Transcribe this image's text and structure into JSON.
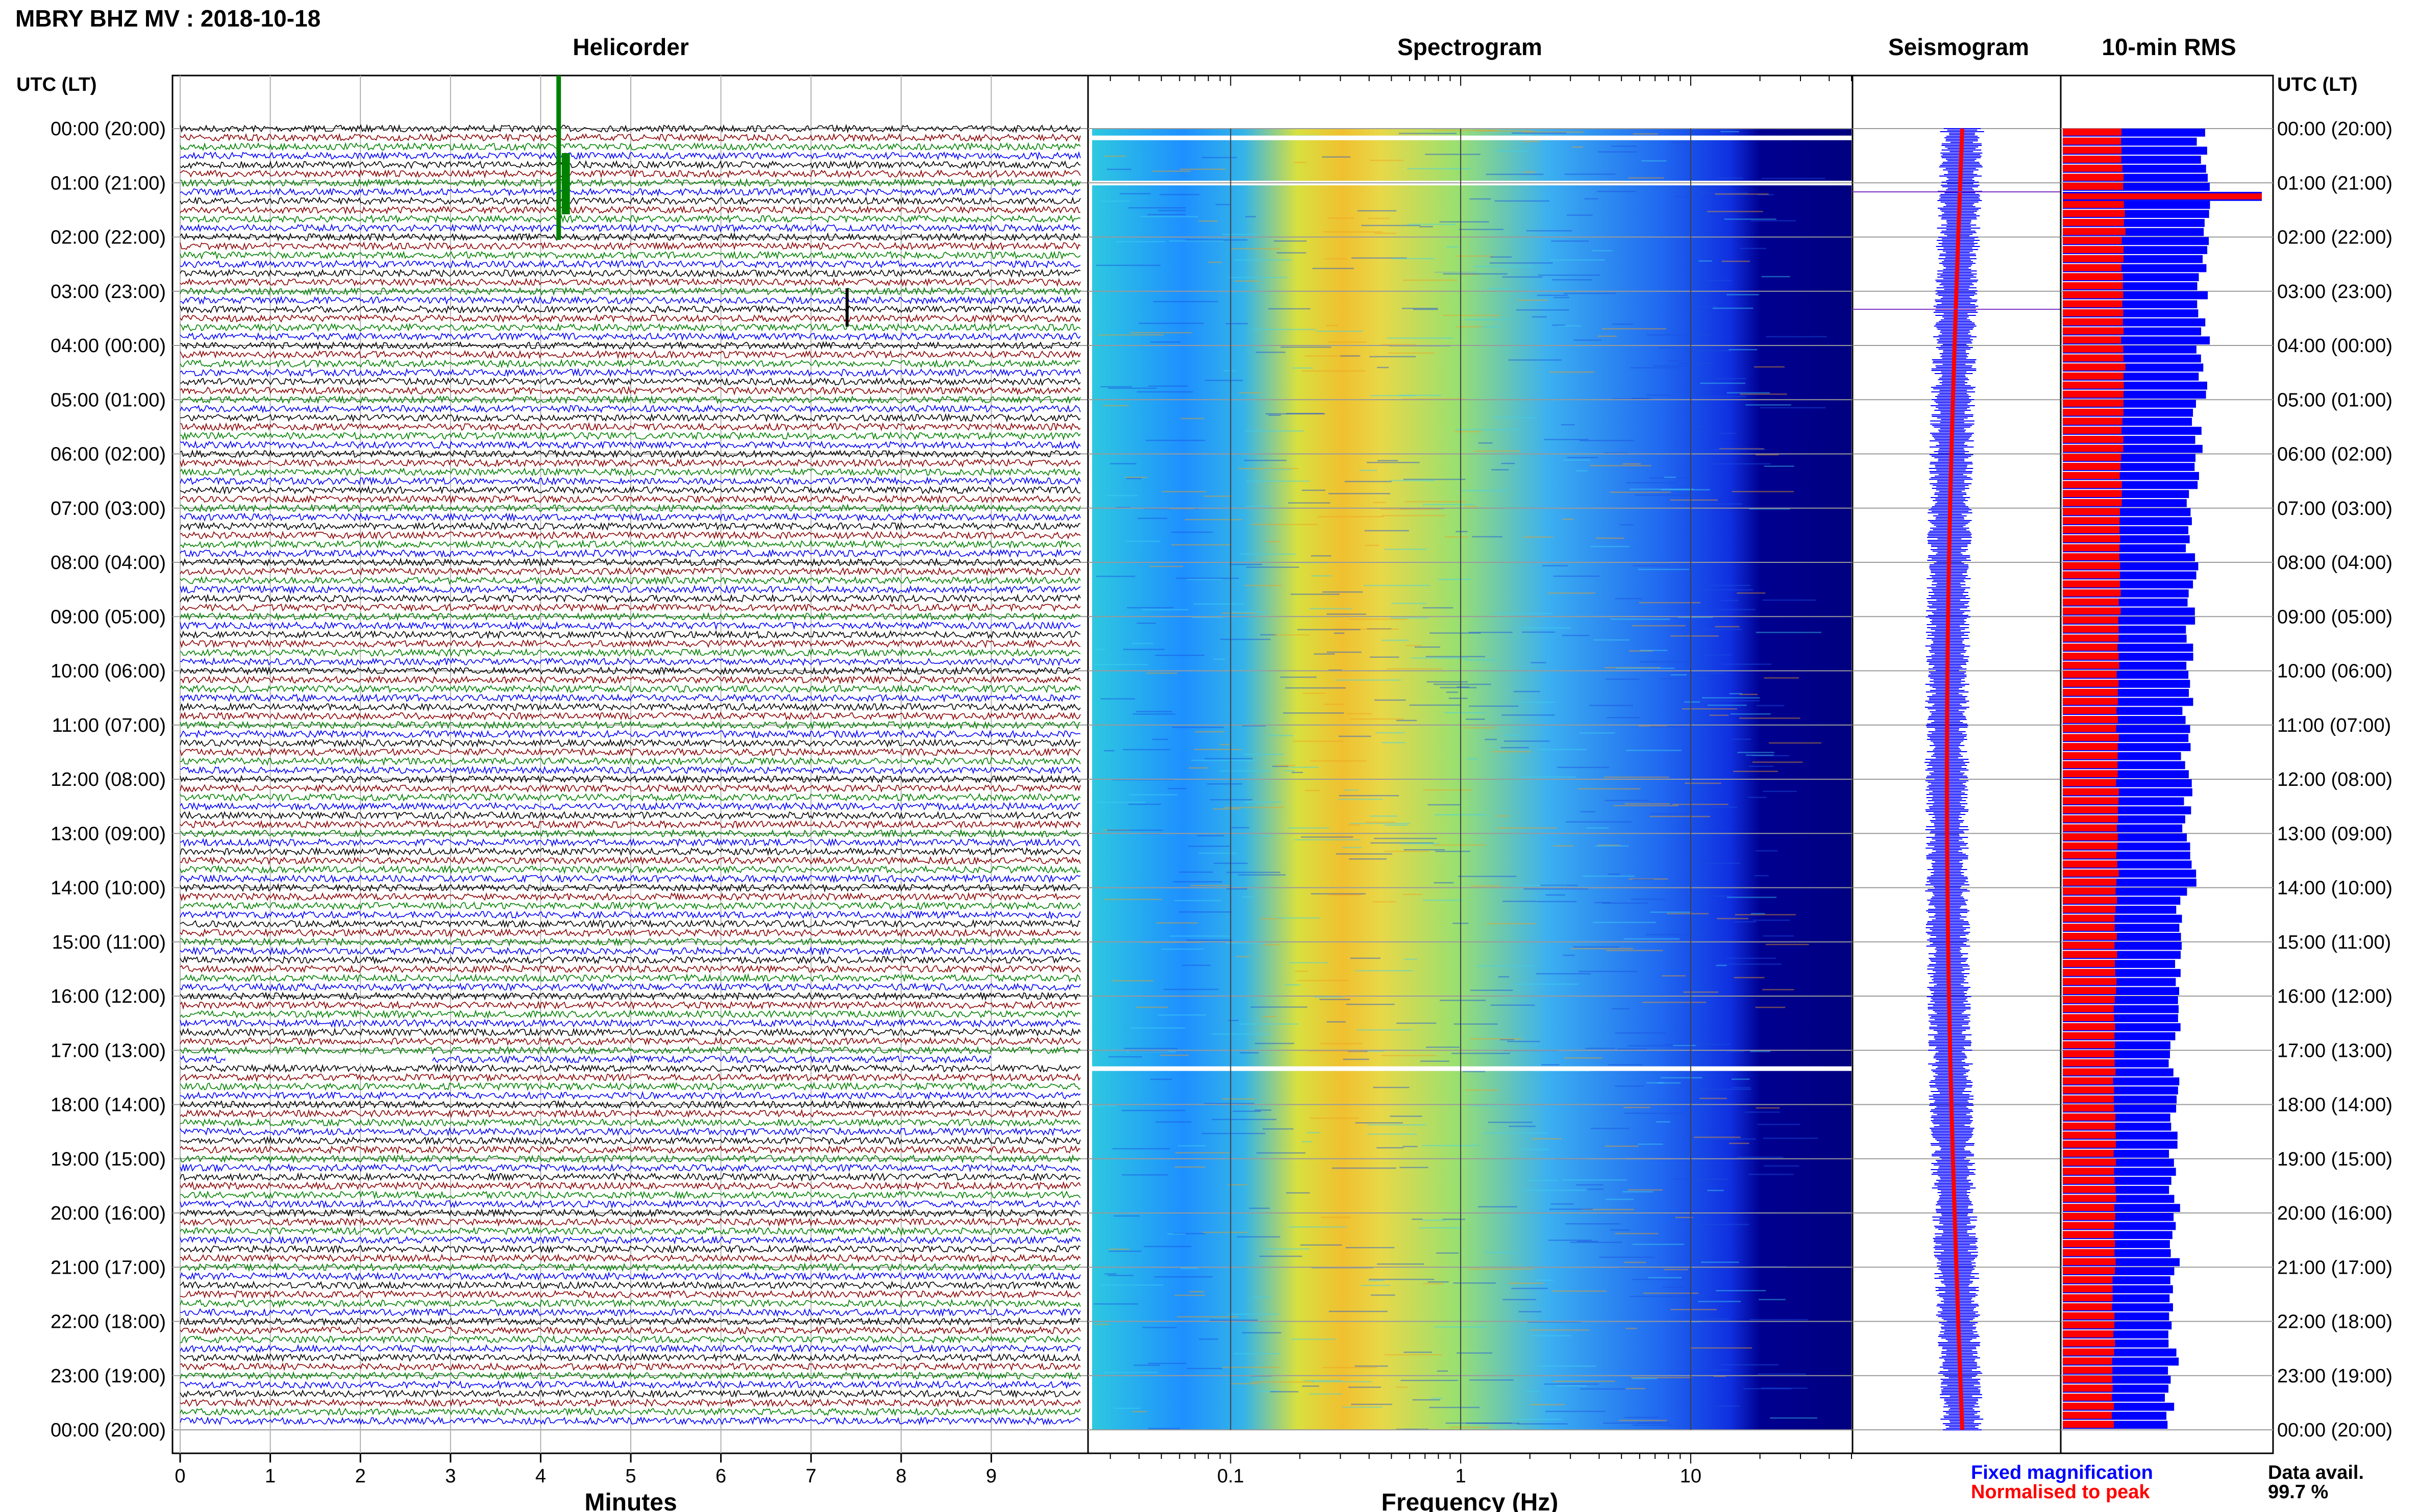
{
  "header": {
    "title": "MBRY BHZ MV : 2018-10-18",
    "utc_label_left": "UTC (LT)",
    "utc_label_right": "UTC (LT)"
  },
  "panels": {
    "helicorder": "Helicorder",
    "spectrogram": "Spectrogram",
    "seismogram": "Seismogram",
    "rms": "10-min RMS"
  },
  "time_labels": [
    "00:00 (20:00)",
    "01:00 (21:00)",
    "02:00 (22:00)",
    "03:00 (23:00)",
    "04:00 (00:00)",
    "05:00 (01:00)",
    "06:00 (02:00)",
    "07:00 (03:00)",
    "08:00 (04:00)",
    "09:00 (05:00)",
    "10:00 (06:00)",
    "11:00 (07:00)",
    "12:00 (08:00)",
    "13:00 (09:00)",
    "14:00 (10:00)",
    "15:00 (11:00)",
    "16:00 (12:00)",
    "17:00 (13:00)",
    "18:00 (14:00)",
    "19:00 (15:00)",
    "20:00 (16:00)",
    "21:00 (17:00)",
    "22:00 (18:00)",
    "23:00 (19:00)",
    "00:00 (20:00)"
  ],
  "axes": {
    "helicorder_xlabel": "Minutes",
    "helicorder_ticks": [
      "0",
      "1",
      "2",
      "3",
      "4",
      "5",
      "6",
      "7",
      "8",
      "9"
    ],
    "spectrogram_xlabel": "Frequency (Hz)",
    "spectrogram_ticks": [
      "0.1",
      "1",
      "10"
    ]
  },
  "legend": {
    "fixed": "Fixed magnification",
    "normalised": "Normalised to peak",
    "fixed_color": "#0000ff",
    "normalised_color": "#ff0000"
  },
  "availability": {
    "label": "Data avail.",
    "value": "99.7 %"
  },
  "colors": {
    "trace_cycle": [
      "#000000",
      "#8b0000",
      "#008000",
      "#0000ff"
    ],
    "event_trace": "#008000",
    "spectrogram_bg": "#000080"
  },
  "chart_data": [
    {
      "type": "line",
      "name": "helicorder",
      "xlabel": "Minutes",
      "x_range": [
        0,
        10
      ],
      "rows_per_hour": 6,
      "row_minutes": 10,
      "events": [
        {
          "start_utc": "00:00",
          "end_utc": "01:10",
          "minute": 4.2,
          "note": "large green event"
        },
        {
          "start_utc": "03:20",
          "minute": 7.4,
          "note": "spike"
        }
      ],
      "gaps": [
        {
          "utc": "17:10",
          "minutes": [
            0.5,
            2.8
          ]
        },
        {
          "utc": "17:10",
          "minutes": [
            9.0,
            10.0
          ]
        }
      ]
    },
    {
      "type": "heatmap",
      "name": "spectrogram",
      "xlabel": "Frequency (Hz)",
      "x_scale": "log",
      "x_range": [
        0.025,
        50
      ],
      "peak_band_hz": [
        0.2,
        0.6
      ],
      "gaps_utc": [
        "00:10",
        "01:00",
        "17:20"
      ]
    },
    {
      "type": "line",
      "name": "seismogram",
      "series": [
        {
          "name": "Fixed magnification",
          "color": "#0000ff"
        },
        {
          "name": "Normalised to peak",
          "color": "#ff0000"
        }
      ]
    },
    {
      "type": "bar",
      "name": "10-min RMS",
      "orientation": "horizontal",
      "hourly_fixed": [
        1.4,
        1.45,
        1.4,
        1.42,
        1.4,
        1.35,
        1.3,
        1.28,
        1.3,
        1.3,
        1.25,
        1.25,
        1.25,
        1.3,
        1.2,
        1.15,
        1.15,
        1.13,
        1.13,
        1.13,
        1.13,
        1.12,
        1.1,
        1.08
      ],
      "hourly_normalised": [
        0.6,
        0.62,
        0.6,
        0.6,
        0.62,
        0.6,
        0.58,
        0.57,
        0.57,
        0.56,
        0.55,
        0.55,
        0.55,
        0.55,
        0.53,
        0.53,
        0.52,
        0.52,
        0.52,
        0.52,
        0.52,
        0.51,
        0.51,
        0.5
      ],
      "peak": {
        "utc": "01:10",
        "value": 2.0
      }
    }
  ]
}
